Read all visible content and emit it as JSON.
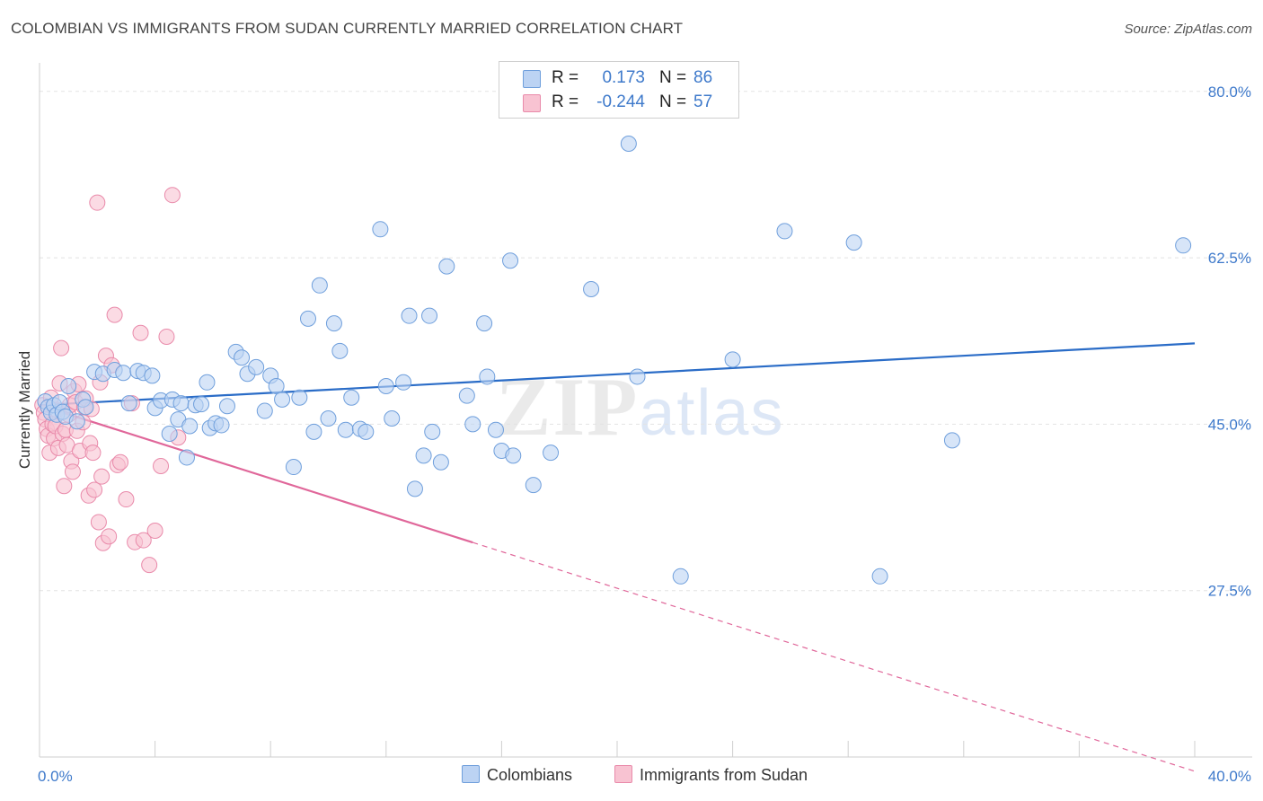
{
  "header": {
    "title": "COLOMBIAN VS IMMIGRANTS FROM SUDAN CURRENTLY MARRIED CORRELATION CHART",
    "source": "Source: ZipAtlas.com"
  },
  "legend": {
    "rows": [
      {
        "r_label": "R =",
        "r_value": "0.173",
        "n_label": "N =",
        "n_value": "86"
      },
      {
        "r_label": "R =",
        "r_value": "-0.244",
        "n_label": "N =",
        "n_value": "57"
      }
    ]
  },
  "bottom_legend": {
    "series_a": "Colombians",
    "series_b": "Immigrants from Sudan"
  },
  "watermark": {
    "zip": "ZIP",
    "atlas": "atlas"
  },
  "colors": {
    "series_a_fill": "#bcd3f3",
    "series_a_stroke": "#6f9fdc",
    "series_a_line": "#2a6cc7",
    "series_b_fill": "#f8c3d2",
    "series_b_stroke": "#e98aaa",
    "series_b_line": "#e0679a",
    "grid": "#e3e3e3",
    "tick_text": "#3f7acb"
  },
  "chart_data": {
    "type": "scatter",
    "title": "COLOMBIAN VS IMMIGRANTS FROM SUDAN CURRENTLY MARRIED CORRELATION CHART",
    "xlabel": "",
    "ylabel": "Currently Married",
    "xlim": [
      0,
      40
    ],
    "ylim": [
      10,
      83
    ],
    "x_tick_labels": [
      "0.0%",
      "40.0%"
    ],
    "y_ticks": [
      27.5,
      45.0,
      62.5,
      80.0
    ],
    "y_tick_labels": [
      "27.5%",
      "45.0%",
      "62.5%",
      "80.0%"
    ],
    "grid": true,
    "legend_placement": "top-center",
    "series": [
      {
        "name": "Colombians",
        "R": 0.173,
        "N": 86,
        "trend": {
          "x": [
            0,
            40
          ],
          "y": [
            47.0,
            53.5
          ],
          "dashed_from": null
        },
        "points": [
          [
            0.2,
            47.4
          ],
          [
            0.3,
            46.8
          ],
          [
            0.4,
            46.2
          ],
          [
            0.5,
            47.0
          ],
          [
            0.6,
            46.0
          ],
          [
            0.7,
            47.3
          ],
          [
            0.8,
            46.3
          ],
          [
            0.9,
            45.8
          ],
          [
            1.0,
            49.0
          ],
          [
            1.3,
            45.3
          ],
          [
            1.5,
            47.6
          ],
          [
            1.6,
            46.8
          ],
          [
            1.9,
            50.5
          ],
          [
            2.2,
            50.3
          ],
          [
            2.6,
            50.7
          ],
          [
            2.9,
            50.4
          ],
          [
            3.1,
            47.2
          ],
          [
            3.4,
            50.6
          ],
          [
            3.6,
            50.4
          ],
          [
            3.9,
            50.1
          ],
          [
            4.0,
            46.7
          ],
          [
            4.2,
            47.5
          ],
          [
            4.5,
            44.0
          ],
          [
            4.6,
            47.6
          ],
          [
            4.8,
            45.5
          ],
          [
            4.9,
            47.2
          ],
          [
            5.1,
            41.5
          ],
          [
            5.2,
            44.8
          ],
          [
            5.4,
            47.0
          ],
          [
            5.6,
            47.1
          ],
          [
            5.8,
            49.4
          ],
          [
            5.9,
            44.6
          ],
          [
            6.1,
            45.1
          ],
          [
            6.3,
            44.9
          ],
          [
            6.5,
            46.9
          ],
          [
            6.8,
            52.6
          ],
          [
            7.0,
            52.0
          ],
          [
            7.2,
            50.3
          ],
          [
            7.5,
            51.0
          ],
          [
            7.8,
            46.4
          ],
          [
            8.0,
            50.1
          ],
          [
            8.2,
            49.0
          ],
          [
            8.4,
            47.6
          ],
          [
            8.8,
            40.5
          ],
          [
            9.0,
            47.8
          ],
          [
            9.3,
            56.1
          ],
          [
            9.5,
            44.2
          ],
          [
            9.7,
            59.6
          ],
          [
            10.0,
            45.6
          ],
          [
            10.2,
            55.6
          ],
          [
            10.4,
            52.7
          ],
          [
            10.6,
            44.4
          ],
          [
            10.8,
            47.8
          ],
          [
            11.1,
            44.5
          ],
          [
            11.3,
            44.2
          ],
          [
            11.8,
            65.5
          ],
          [
            12.0,
            49.0
          ],
          [
            12.2,
            45.6
          ],
          [
            12.6,
            49.4
          ],
          [
            12.8,
            56.4
          ],
          [
            13.0,
            38.2
          ],
          [
            13.3,
            41.7
          ],
          [
            13.5,
            56.4
          ],
          [
            13.6,
            44.2
          ],
          [
            13.9,
            41.0
          ],
          [
            14.1,
            61.6
          ],
          [
            14.8,
            48.0
          ],
          [
            15.0,
            45.0
          ],
          [
            15.4,
            55.6
          ],
          [
            15.5,
            50.0
          ],
          [
            15.8,
            44.4
          ],
          [
            16.0,
            42.2
          ],
          [
            16.3,
            62.2
          ],
          [
            16.4,
            41.7
          ],
          [
            17.1,
            38.6
          ],
          [
            17.7,
            42.0
          ],
          [
            19.1,
            59.2
          ],
          [
            20.4,
            74.5
          ],
          [
            20.7,
            50.0
          ],
          [
            22.2,
            29.0
          ],
          [
            24.0,
            51.8
          ],
          [
            25.8,
            65.3
          ],
          [
            28.2,
            64.1
          ],
          [
            29.1,
            29.0
          ],
          [
            31.6,
            43.3
          ],
          [
            39.6,
            63.8
          ]
        ]
      },
      {
        "name": "Immigrants from Sudan",
        "R": -0.244,
        "N": 57,
        "trend": {
          "x": [
            0,
            40
          ],
          "y": [
            47.0,
            8.5
          ],
          "dashed_from": 15.0
        },
        "points": [
          [
            0.1,
            47.0
          ],
          [
            0.15,
            46.2
          ],
          [
            0.2,
            45.5
          ],
          [
            0.25,
            44.5
          ],
          [
            0.3,
            43.8
          ],
          [
            0.35,
            42.0
          ],
          [
            0.4,
            47.8
          ],
          [
            0.45,
            45.0
          ],
          [
            0.5,
            43.5
          ],
          [
            0.55,
            44.8
          ],
          [
            0.6,
            46.5
          ],
          [
            0.65,
            42.5
          ],
          [
            0.7,
            49.3
          ],
          [
            0.75,
            53.0
          ],
          [
            0.8,
            44.0
          ],
          [
            0.85,
            38.5
          ],
          [
            0.9,
            44.4
          ],
          [
            0.95,
            42.8
          ],
          [
            1.0,
            46.0
          ],
          [
            1.05,
            47.0
          ],
          [
            1.1,
            41.1
          ],
          [
            1.15,
            40.0
          ],
          [
            1.2,
            48.5
          ],
          [
            1.25,
            47.3
          ],
          [
            1.3,
            44.3
          ],
          [
            1.35,
            49.2
          ],
          [
            1.4,
            42.2
          ],
          [
            1.5,
            45.2
          ],
          [
            1.55,
            46.8
          ],
          [
            1.6,
            47.7
          ],
          [
            1.7,
            37.5
          ],
          [
            1.75,
            43.0
          ],
          [
            1.8,
            46.6
          ],
          [
            1.85,
            42.0
          ],
          [
            1.9,
            38.1
          ],
          [
            2.0,
            68.3
          ],
          [
            2.05,
            34.7
          ],
          [
            2.1,
            49.4
          ],
          [
            2.15,
            39.5
          ],
          [
            2.2,
            32.5
          ],
          [
            2.3,
            52.2
          ],
          [
            2.4,
            33.2
          ],
          [
            2.5,
            51.2
          ],
          [
            2.6,
            56.5
          ],
          [
            2.7,
            40.7
          ],
          [
            2.8,
            41.0
          ],
          [
            3.0,
            37.1
          ],
          [
            3.2,
            47.2
          ],
          [
            3.3,
            32.6
          ],
          [
            3.5,
            54.6
          ],
          [
            3.6,
            32.8
          ],
          [
            3.8,
            30.2
          ],
          [
            4.0,
            33.8
          ],
          [
            4.2,
            40.6
          ],
          [
            4.4,
            54.2
          ],
          [
            4.6,
            69.1
          ],
          [
            4.8,
            43.6
          ]
        ]
      }
    ]
  }
}
